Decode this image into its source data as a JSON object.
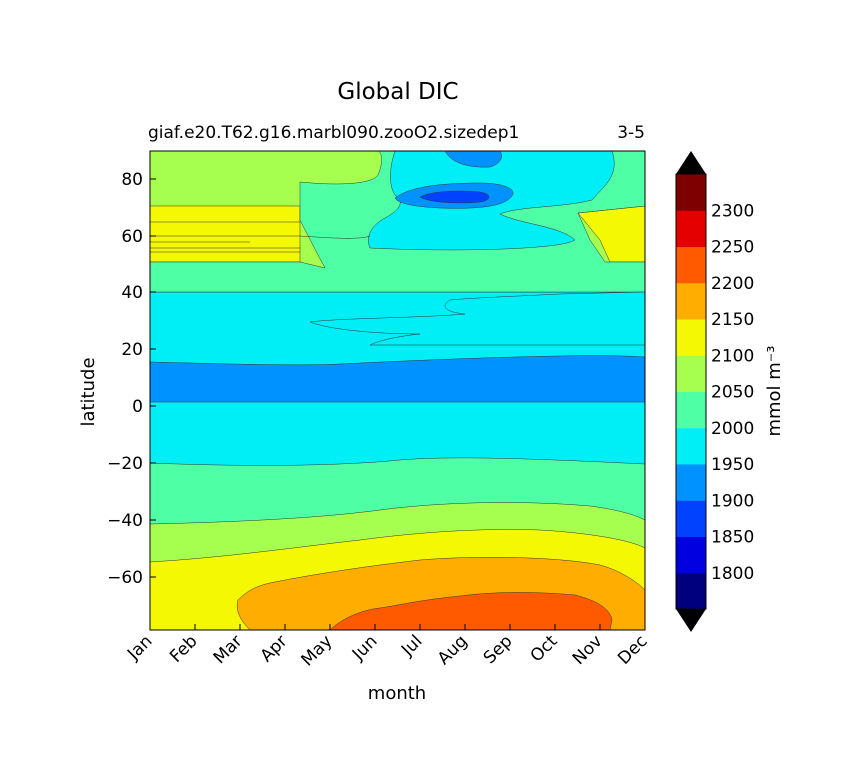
{
  "chart_data": {
    "type": "contourf",
    "title": "Global DIC",
    "subtitle_left": "giaf.e20.T62.g16.marbl090.zooO2.sizedep1",
    "subtitle_right": "3-5",
    "xlabel": "month",
    "ylabel": "latitude",
    "x_categories": [
      "Jan",
      "Feb",
      "Mar",
      "Apr",
      "May",
      "Jun",
      "Jul",
      "Aug",
      "Sep",
      "Oct",
      "Nov",
      "Dec"
    ],
    "y_ticks": [
      80,
      60,
      40,
      20,
      0,
      -20,
      -40,
      -60
    ],
    "y_tick_labels": [
      "80",
      "60",
      "40",
      "20",
      "0",
      "−20",
      "−40",
      "−60"
    ],
    "ylim": [
      -78,
      90
    ],
    "colorbar": {
      "label": "mmol m⁻³",
      "levels": [
        1750,
        1800,
        1850,
        1900,
        1950,
        2000,
        2050,
        2100,
        2150,
        2200,
        2250,
        2300,
        2350
      ],
      "tick_values": [
        1800,
        1850,
        1900,
        1950,
        2000,
        2050,
        2100,
        2150,
        2200,
        2250,
        2300
      ],
      "tick_labels": [
        "1800",
        "1850",
        "1900",
        "1950",
        "2000",
        "2050",
        "2100",
        "2150",
        "2200",
        "2250",
        "2300"
      ],
      "colors": [
        "#00007f",
        "#0000e1",
        "#0042ff",
        "#0093ff",
        "#00eef6",
        "#4fffa6",
        "#a6ff4f",
        "#f4f802",
        "#ffad00",
        "#ff5a00",
        "#e50000",
        "#7f0000"
      ],
      "extend_low_color": "#000000",
      "extend_high_color": "#000000"
    },
    "bands_note": "approximate latitude bands (DIC mmol m-3) read from the contour field",
    "bands": [
      {
        "lat_top": 90,
        "lat_bottom": 72,
        "value": 2050
      },
      {
        "lat_top": 72,
        "lat_bottom": 54,
        "value": 2100
      },
      {
        "lat_top": 54,
        "lat_bottom": 42,
        "value": 2050
      },
      {
        "lat_top": 42,
        "lat_bottom": 22,
        "value": 2000
      },
      {
        "lat_top": 22,
        "lat_bottom": 15,
        "value": 1950
      },
      {
        "lat_top": 15,
        "lat_bottom": 1,
        "value": 1900
      },
      {
        "lat_top": 1,
        "lat_bottom": -20,
        "value": 1950
      },
      {
        "lat_top": -20,
        "lat_bottom": -40,
        "value": 2000
      },
      {
        "lat_top": -40,
        "lat_bottom": -54,
        "value": 2050
      },
      {
        "lat_top": -54,
        "lat_bottom": -65,
        "value": 2100
      },
      {
        "lat_top": -65,
        "lat_bottom": -78,
        "value": 2150
      }
    ]
  }
}
